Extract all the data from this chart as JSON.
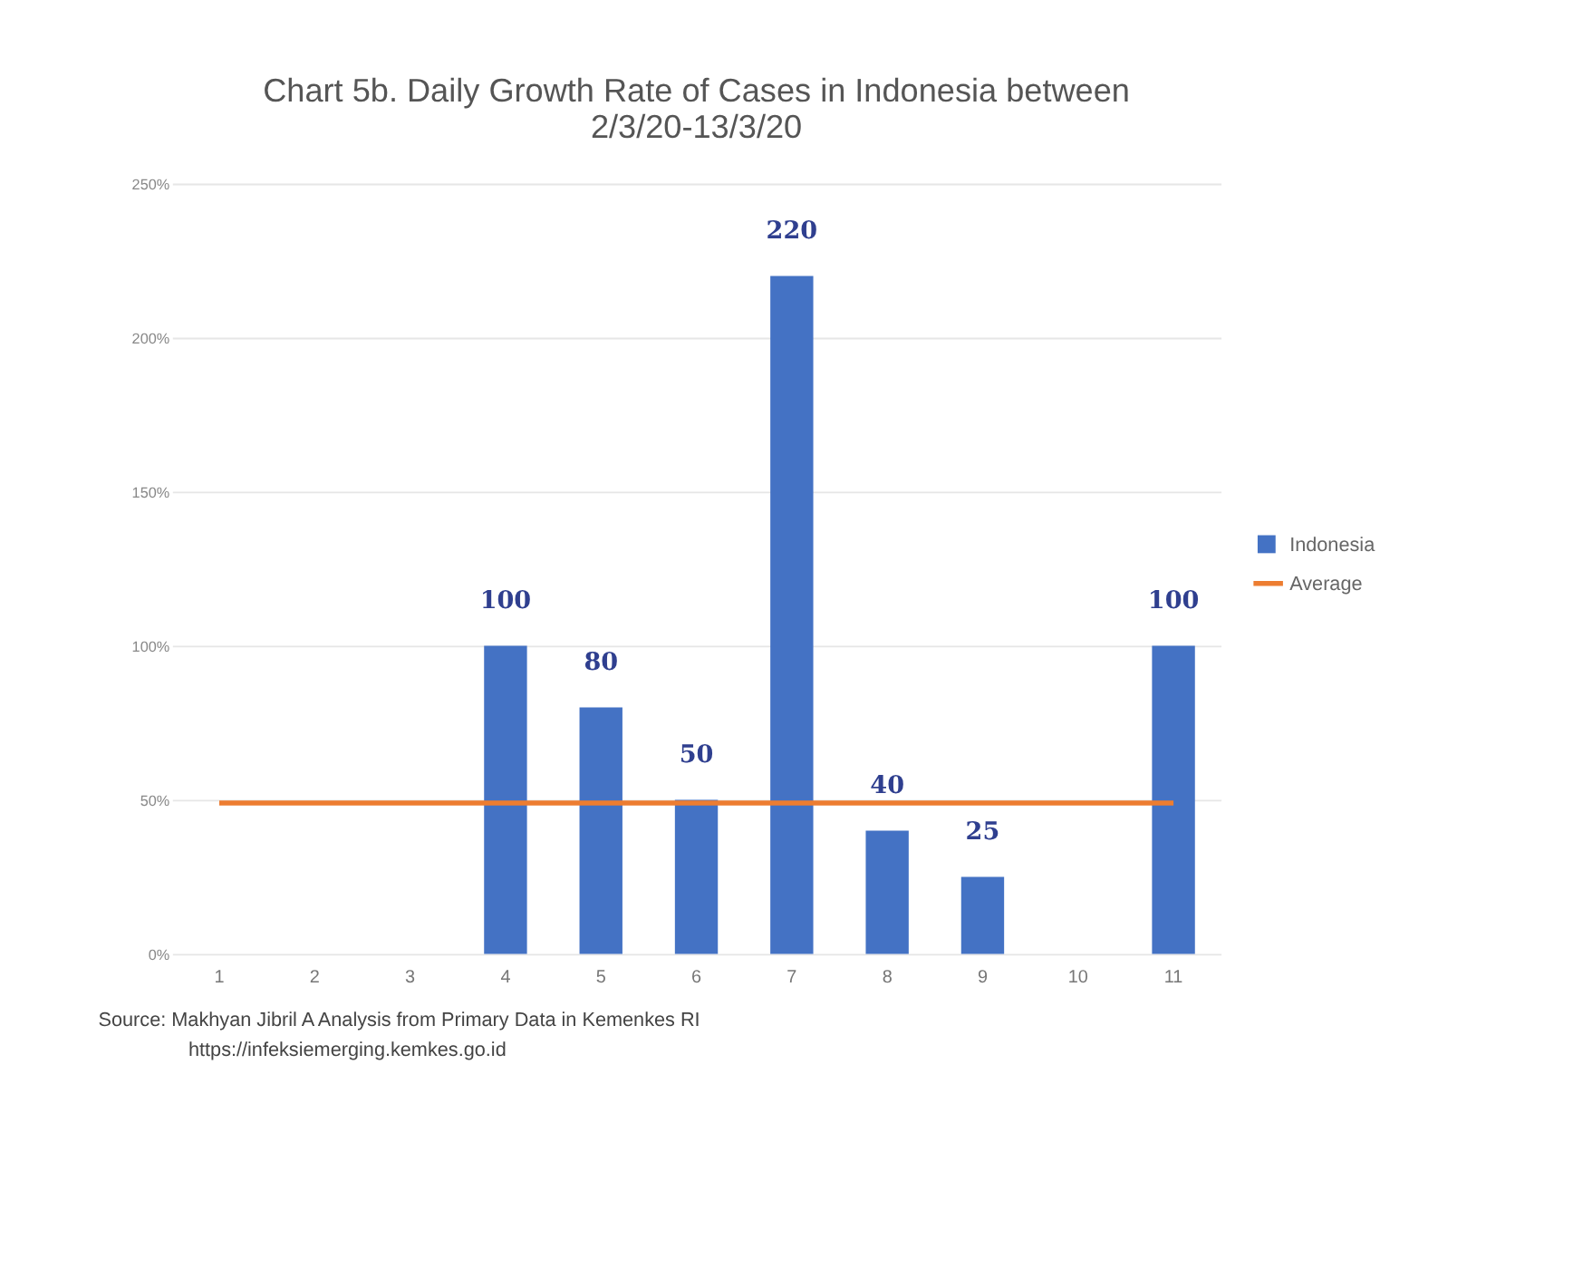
{
  "chart_data": {
    "type": "bar",
    "title": "Chart 5b. Daily Growth Rate of Cases in Indonesia between 2/3/20-13/3/20",
    "categories": [
      "1",
      "2",
      "3",
      "4",
      "5",
      "6",
      "7",
      "8",
      "9",
      "10",
      "11"
    ],
    "series": [
      {
        "name": "Indonesia",
        "color": "#4472c4",
        "values": [
          null,
          null,
          null,
          100,
          80,
          50,
          220,
          40,
          25,
          null,
          100
        ],
        "value_labels": [
          null,
          null,
          null,
          "100",
          "80",
          "50",
          "220",
          "40",
          "25",
          null,
          "100"
        ]
      },
      {
        "name": "Average",
        "type": "line",
        "color": "#ed7d31",
        "values": [
          49,
          49,
          49,
          49,
          49,
          49,
          49,
          49,
          49,
          49,
          49
        ]
      }
    ],
    "ylim": [
      0,
      250
    ],
    "yticks": [
      {
        "value": 0,
        "label": "0%"
      },
      {
        "value": 50,
        "label": "50%"
      },
      {
        "value": 100,
        "label": "100%"
      },
      {
        "value": 150,
        "label": "150%"
      },
      {
        "value": 200,
        "label": "200%"
      },
      {
        "value": 250,
        "label": "250%"
      }
    ],
    "grid": "y",
    "legend": "right",
    "annotations": [
      "Source: Makhyan Jibril  A Analysis from Primary Data in Kemenkes RI",
      "https://infeksiemerging.kemkes.go.id"
    ]
  }
}
